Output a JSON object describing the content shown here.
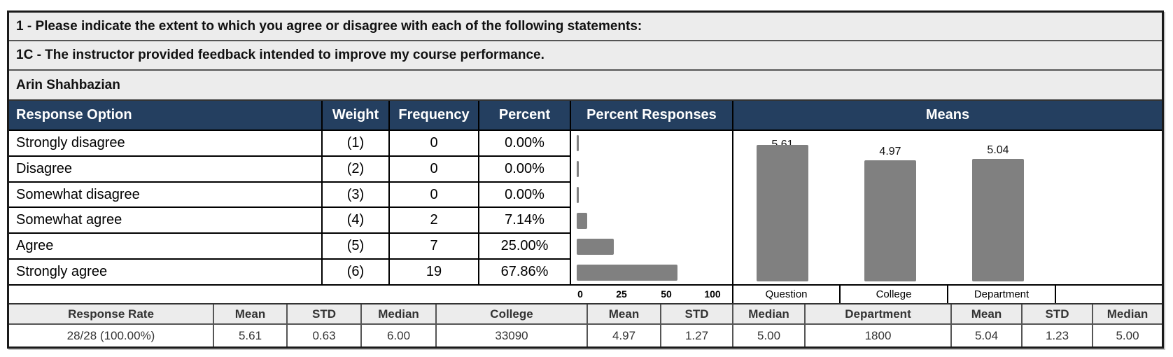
{
  "question": {
    "group_title": "1 - Please indicate the extent to which you agree or disagree with each of the following statements:",
    "item_title": "1C - The instructor provided feedback intended to improve my course performance.",
    "instructor": "Arin Shahbazian"
  },
  "table": {
    "headers": {
      "option": "Response Option",
      "weight": "Weight",
      "frequency": "Frequency",
      "percent": "Percent",
      "percent_responses": "Percent Responses",
      "means": "Means"
    },
    "rows": [
      {
        "option": "Strongly disagree",
        "weight": "(1)",
        "frequency": "0",
        "percent": "0.00%"
      },
      {
        "option": "Disagree",
        "weight": "(2)",
        "frequency": "0",
        "percent": "0.00%"
      },
      {
        "option": "Somewhat disagree",
        "weight": "(3)",
        "frequency": "0",
        "percent": "0.00%"
      },
      {
        "option": "Somewhat agree",
        "weight": "(4)",
        "frequency": "2",
        "percent": "7.14%"
      },
      {
        "option": "Agree",
        "weight": "(5)",
        "frequency": "7",
        "percent": "25.00%"
      },
      {
        "option": "Strongly agree",
        "weight": "(6)",
        "frequency": "19",
        "percent": "67.86%"
      }
    ]
  },
  "percent_axis": {
    "ticks": [
      "0",
      "25",
      "50",
      "100"
    ]
  },
  "means_axis": {
    "labels": [
      "Question",
      "College",
      "Department"
    ]
  },
  "summary": {
    "headers": [
      "Response Rate",
      "Mean",
      "STD",
      "Median",
      "College",
      "Mean",
      "STD",
      "Median",
      "Department",
      "Mean",
      "STD",
      "Median"
    ],
    "values": [
      "28/28 (100.00%)",
      "5.61",
      "0.63",
      "6.00",
      "33090",
      "4.97",
      "1.27",
      "5.00",
      "1800",
      "5.04",
      "1.23",
      "5.00"
    ]
  },
  "colors": {
    "header_bg": "#243f60",
    "title_bg": "#ececec",
    "bar": "#808080"
  },
  "chart_data": [
    {
      "type": "bar",
      "orientation": "horizontal",
      "title": "Percent Responses",
      "categories": [
        "Strongly disagree",
        "Disagree",
        "Somewhat disagree",
        "Somewhat agree",
        "Agree",
        "Strongly agree"
      ],
      "values": [
        0,
        0,
        0,
        7.14,
        25.0,
        67.86
      ],
      "xlabel": "",
      "ylabel": "",
      "xticks": [
        0,
        25,
        50,
        100
      ],
      "xlim": [
        0,
        100
      ],
      "grid": false
    },
    {
      "type": "bar",
      "orientation": "vertical",
      "title": "Means",
      "categories": [
        "Question",
        "College",
        "Department"
      ],
      "values": [
        5.61,
        4.97,
        5.04
      ],
      "data_labels": [
        "5.61",
        "4.97",
        "5.04"
      ],
      "xlabel": "",
      "ylabel": "",
      "grid": false
    }
  ]
}
